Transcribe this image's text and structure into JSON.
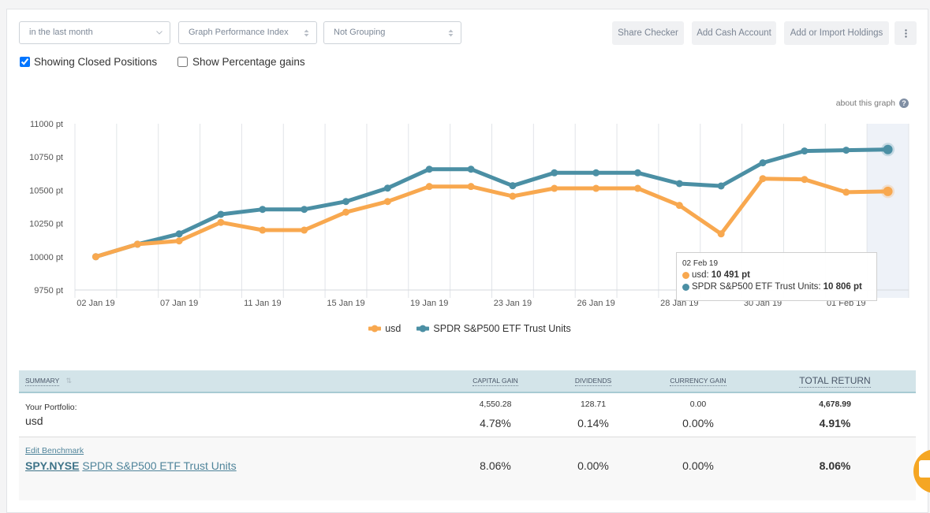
{
  "filters": {
    "period": "in the last month",
    "graph_type": "Graph Performance Index",
    "grouping": "Not Grouping"
  },
  "actions": {
    "share_checker": "Share Checker",
    "add_cash_account": "Add Cash Account",
    "add_import_holdings": "Add or Import Holdings",
    "more_icon": "kebab-vertical-icon"
  },
  "options": {
    "closed_positions": {
      "label": "Showing Closed Positions",
      "checked": true
    },
    "percentage_gains": {
      "label": "Show Percentage gains",
      "checked": false
    }
  },
  "about_graph": {
    "label": "about this graph",
    "icon": "?"
  },
  "colors": {
    "usd": "#f8a84f",
    "benchmark": "#4b8fa4",
    "highlight": "#eef2f8",
    "header": "#d3e4e9",
    "chat_button": "#f5a623"
  },
  "chart_data": {
    "type": "line",
    "title": "",
    "xlabel": "",
    "ylabel": "",
    "ylim": [
      9750,
      11000
    ],
    "y_ticks": [
      11000,
      10750,
      10500,
      10250,
      10000,
      9750
    ],
    "y_tick_labels": [
      "11000 pt",
      "10750 pt",
      "10500 pt",
      "10250 pt",
      "10000 pt",
      "9750 pt"
    ],
    "x_tick_labels": [
      "02 Jan 19",
      "",
      "07 Jan 19",
      "",
      "11 Jan 19",
      "",
      "15 Jan 19",
      "",
      "19 Jan 19",
      "",
      "23 Jan 19",
      "",
      "26 Jan 19",
      "",
      "28 Jan 19",
      "",
      "30 Jan 19",
      "",
      "01 Feb 19",
      ""
    ],
    "grid": "vertical",
    "highlighted_index": 19,
    "legend": "bottom-center",
    "series": [
      {
        "name": "usd",
        "color": "#f8a84f",
        "values": [
          10000,
          10094,
          10119,
          10258,
          10200,
          10200,
          10335,
          10415,
          10528,
          10528,
          10455,
          10514,
          10514,
          10514,
          10386,
          10172,
          10587,
          10581,
          10485,
          10491
        ]
      },
      {
        "name": "SPDR S&P500 ETF Trust Units",
        "color": "#4b8fa4",
        "values": [
          10000,
          10094,
          10172,
          10319,
          10356,
          10356,
          10415,
          10516,
          10658,
          10658,
          10534,
          10631,
          10631,
          10631,
          10550,
          10532,
          10706,
          10795,
          10801,
          10806
        ]
      }
    ]
  },
  "tooltip": {
    "date": "02 Feb 19",
    "rows": [
      {
        "label": "usd:",
        "value": "10 491 pt"
      },
      {
        "label": "SPDR S&P500 ETF Trust Units:",
        "value": "10 806 pt"
      }
    ]
  },
  "legend": [
    {
      "label": "usd"
    },
    {
      "label": "SPDR S&P500 ETF Trust Units"
    }
  ],
  "summary": {
    "columns": [
      "SUMMARY",
      "CAPITAL GAIN",
      "DIVIDENDS",
      "CURRENCY GAIN",
      "TOTAL RETURN"
    ],
    "sort_icon": "⇅",
    "portfolio": {
      "label": "Your Portfolio:",
      "name": "usd",
      "capital_gain": {
        "amount": "4,550.28",
        "pct": "4.78%"
      },
      "dividends": {
        "amount": "128.71",
        "pct": "0.14%"
      },
      "currency_gain": {
        "amount": "0.00",
        "pct": "0.00%"
      },
      "total_return": {
        "amount": "4,678.99",
        "pct": "4.91%"
      }
    },
    "benchmark": {
      "edit_label": "Edit Benchmark",
      "ticker": "SPY.NYSE",
      "name": "SPDR S&P500 ETF Trust Units",
      "capital_gain": "8.06%",
      "dividends": "0.00%",
      "currency_gain": "0.00%",
      "total_return": "8.06%"
    }
  }
}
